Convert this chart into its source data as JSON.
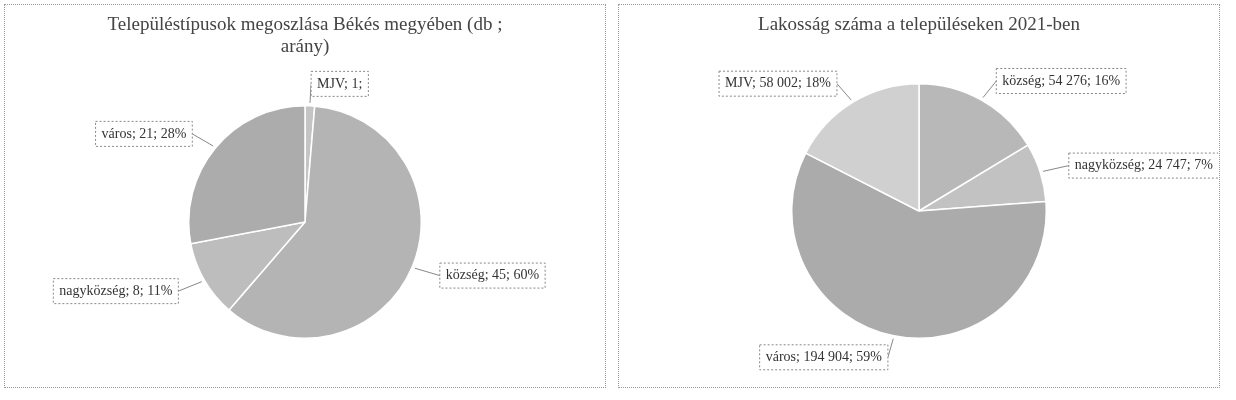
{
  "chart_data": [
    {
      "type": "pie",
      "title": "Településtípusok megoszlása Békés megyében (db ; arány)",
      "categories": [
        "MJV",
        "község",
        "nagyközség",
        "város"
      ],
      "values": [
        1,
        45,
        8,
        21
      ],
      "colors": [
        "#c4c4c4",
        "#b4b4b4",
        "#bdbdbd",
        "#acacac"
      ],
      "value_labels": [
        "1;",
        "45; 60%",
        "8; 11%",
        "21; 28%"
      ]
    },
    {
      "type": "pie",
      "title": "Lakosság száma a településeken 2021-ben",
      "categories": [
        "község",
        "nagyközség",
        "város",
        "MJV"
      ],
      "values": [
        54276,
        24747,
        194904,
        58002
      ],
      "colors": [
        "#b8b8b8",
        "#c2c2c2",
        "#ababab",
        "#d0d0d0"
      ],
      "value_labels": [
        "54 276; 16%",
        "24 747; 7%",
        "194 904; 59%",
        "58 002; 18%"
      ]
    }
  ]
}
